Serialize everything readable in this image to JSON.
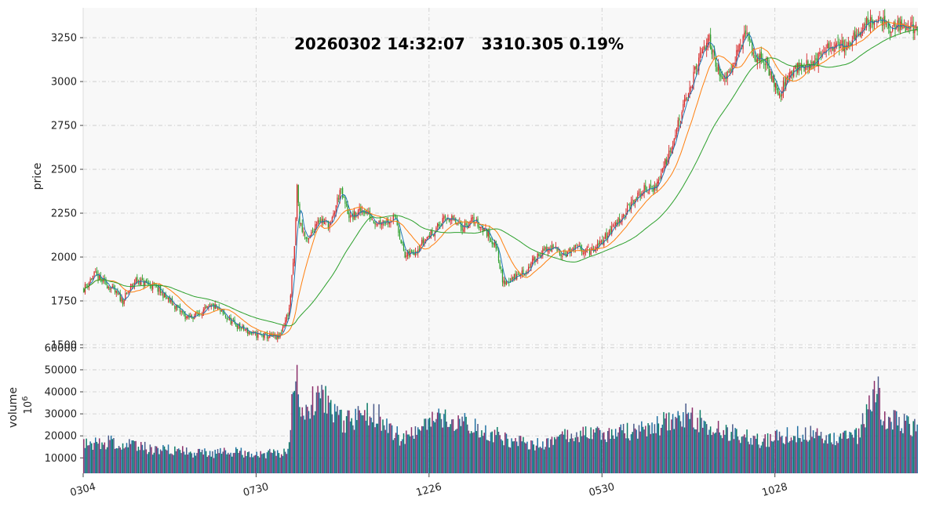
{
  "chart_data": {
    "type": "candlestick",
    "title": "20260302 14:32:07   3310.305 0.19%",
    "colors": {
      "background": "#f8f8f8",
      "up": "#d62728",
      "down": "#2ca02c",
      "ma_short": "#1f77b4",
      "ma_mid": "#ff7f0e",
      "ma_long": "#2ca02c",
      "grid": "#c8c8c8",
      "volume_palette": [
        "#8b2e6a",
        "#1f6fa1",
        "#0a7a66",
        "#4a5a8a"
      ]
    },
    "price_panel": {
      "ylabel": "price",
      "ylim": [
        1500,
        3420
      ],
      "yticks": [
        "1500",
        "1750",
        "2000",
        "2250",
        "2500",
        "2750",
        "3000",
        "3250"
      ],
      "ytick_values": [
        1500,
        1750,
        2000,
        2250,
        2500,
        2750,
        3000,
        3250
      ],
      "anchors": [
        [
          0,
          1820
        ],
        [
          8,
          1900
        ],
        [
          20,
          1830
        ],
        [
          30,
          1750
        ],
        [
          40,
          1870
        ],
        [
          55,
          1830
        ],
        [
          70,
          1720
        ],
        [
          80,
          1650
        ],
        [
          100,
          1720
        ],
        [
          115,
          1620
        ],
        [
          130,
          1560
        ],
        [
          150,
          1540
        ],
        [
          158,
          1700
        ],
        [
          162,
          2050
        ],
        [
          164,
          2400
        ],
        [
          166,
          2200
        ],
        [
          172,
          2080
        ],
        [
          180,
          2220
        ],
        [
          190,
          2180
        ],
        [
          197,
          2380
        ],
        [
          205,
          2220
        ],
        [
          215,
          2270
        ],
        [
          225,
          2200
        ],
        [
          240,
          2220
        ],
        [
          247,
          2000
        ],
        [
          255,
          2040
        ],
        [
          265,
          2120
        ],
        [
          280,
          2230
        ],
        [
          290,
          2170
        ],
        [
          300,
          2210
        ],
        [
          310,
          2140
        ],
        [
          318,
          2050
        ],
        [
          322,
          1850
        ],
        [
          340,
          1920
        ],
        [
          350,
          2020
        ],
        [
          360,
          2050
        ],
        [
          370,
          2020
        ],
        [
          380,
          2050
        ],
        [
          392,
          2030
        ],
        [
          410,
          2200
        ],
        [
          430,
          2380
        ],
        [
          440,
          2400
        ],
        [
          450,
          2600
        ],
        [
          460,
          2820
        ],
        [
          470,
          3050
        ],
        [
          480,
          3250
        ],
        [
          485,
          3150
        ],
        [
          490,
          3000
        ],
        [
          500,
          3120
        ],
        [
          510,
          3280
        ],
        [
          515,
          3150
        ],
        [
          525,
          3100
        ],
        [
          535,
          2930
        ],
        [
          545,
          3070
        ],
        [
          560,
          3100
        ],
        [
          575,
          3200
        ],
        [
          590,
          3220
        ],
        [
          600,
          3330
        ],
        [
          610,
          3360
        ],
        [
          620,
          3300
        ],
        [
          632,
          3320
        ],
        [
          641,
          3310
        ]
      ],
      "ma_windows": [
        5,
        20,
        60
      ]
    },
    "volume_panel": {
      "ylabel": "volume",
      "unit_label": "10",
      "unit_exponent": "6",
      "ylim": [
        3000,
        61000
      ],
      "yticks": [
        "10000",
        "20000",
        "30000",
        "40000",
        "50000",
        "60000"
      ],
      "ytick_values": [
        10000,
        20000,
        30000,
        40000,
        50000,
        60000
      ],
      "anchors": [
        [
          0,
          16000
        ],
        [
          20,
          17000
        ],
        [
          40,
          15000
        ],
        [
          60,
          14000
        ],
        [
          90,
          12000
        ],
        [
          120,
          12500
        ],
        [
          150,
          12000
        ],
        [
          157,
          15000
        ],
        [
          161,
          40000
        ],
        [
          163,
          55000
        ],
        [
          167,
          30000
        ],
        [
          180,
          38000
        ],
        [
          190,
          34000
        ],
        [
          200,
          26000
        ],
        [
          215,
          29000
        ],
        [
          225,
          30000
        ],
        [
          245,
          18000
        ],
        [
          270,
          27000
        ],
        [
          290,
          28000
        ],
        [
          300,
          24000
        ],
        [
          320,
          20000
        ],
        [
          330,
          17000
        ],
        [
          350,
          16000
        ],
        [
          380,
          21000
        ],
        [
          400,
          21000
        ],
        [
          420,
          22000
        ],
        [
          440,
          24000
        ],
        [
          460,
          30000
        ],
        [
          480,
          25000
        ],
        [
          500,
          21000
        ],
        [
          520,
          18000
        ],
        [
          540,
          20000
        ],
        [
          560,
          21000
        ],
        [
          580,
          19000
        ],
        [
          595,
          20000
        ],
        [
          605,
          35000
        ],
        [
          610,
          42000
        ],
        [
          615,
          28000
        ],
        [
          630,
          26000
        ],
        [
          641,
          23000
        ]
      ]
    },
    "x": {
      "count": 642,
      "tick_labels": [
        "0304",
        "0730",
        "1226",
        "0530",
        "1028"
      ],
      "tick_indices": [
        0,
        133,
        266,
        399,
        532
      ]
    }
  }
}
